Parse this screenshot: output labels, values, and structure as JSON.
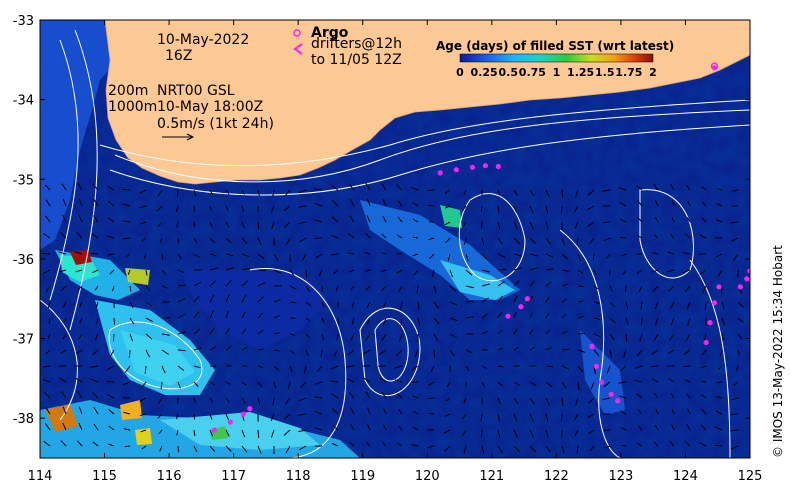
{
  "map": {
    "date": "10-May-2022",
    "hour": "16Z",
    "legend_argo": "Argo",
    "legend_drifters_line1": "drifters@12h",
    "legend_drifters_line2": "to 11/05 12Z",
    "isobath_200": "200m",
    "isobath_1000": "1000m",
    "altimetry_label": "NRT00 GSL",
    "altimetry_time": "10-May 18:00Z",
    "scale_label": "0.5m/s (1kt 24h)",
    "colorbar_title": "Age (days) of filled SST (wrt latest)",
    "colorbar_ticks": [
      "0",
      "0.25",
      "0.5",
      "0.75",
      "1",
      "1.25",
      "1.5",
      "1.75",
      "2"
    ],
    "credit": "© IMOS 13-May-2022 15:34 Hobart",
    "lon_ticks": [
      "114",
      "115",
      "116",
      "117",
      "118",
      "119",
      "120",
      "121",
      "122",
      "123",
      "124",
      "125"
    ],
    "lat_ticks": [
      "-33",
      "-34",
      "-35",
      "-36",
      "-37",
      "-38"
    ],
    "lon_range": [
      114,
      125
    ],
    "lat_range": [
      -38.5,
      -33
    ],
    "colors": {
      "ocean": "#0a1f8a",
      "land": "#fcc894",
      "drifter": "#ff22ee",
      "contour": "#ffffff"
    },
    "drifter_tracks": [
      [
        [
          120.2,
          -34.92
        ],
        [
          120.45,
          -34.88
        ],
        [
          120.7,
          -34.85
        ],
        [
          120.9,
          -34.83
        ],
        [
          121.1,
          -34.84
        ]
      ],
      [
        [
          121.25,
          -36.72
        ],
        [
          121.45,
          -36.6
        ],
        [
          121.55,
          -36.5
        ]
      ],
      [
        [
          122.55,
          -37.1
        ],
        [
          122.62,
          -37.35
        ],
        [
          122.7,
          -37.55
        ],
        [
          122.85,
          -37.7
        ],
        [
          122.95,
          -37.78
        ]
      ],
      [
        [
          124.32,
          -37.05
        ],
        [
          124.38,
          -36.8
        ],
        [
          124.45,
          -36.55
        ],
        [
          124.52,
          -36.35
        ]
      ],
      [
        [
          124.85,
          -36.35
        ],
        [
          124.95,
          -36.25
        ],
        [
          125.0,
          -36.15
        ]
      ],
      [
        [
          116.7,
          -38.15
        ],
        [
          116.95,
          -38.05
        ],
        [
          117.15,
          -37.95
        ],
        [
          117.25,
          -37.88
        ]
      ],
      [
        [
          124.45,
          -33.6
        ]
      ]
    ],
    "argo_floats": [
      [
        124.45,
        -33.58
      ]
    ]
  }
}
